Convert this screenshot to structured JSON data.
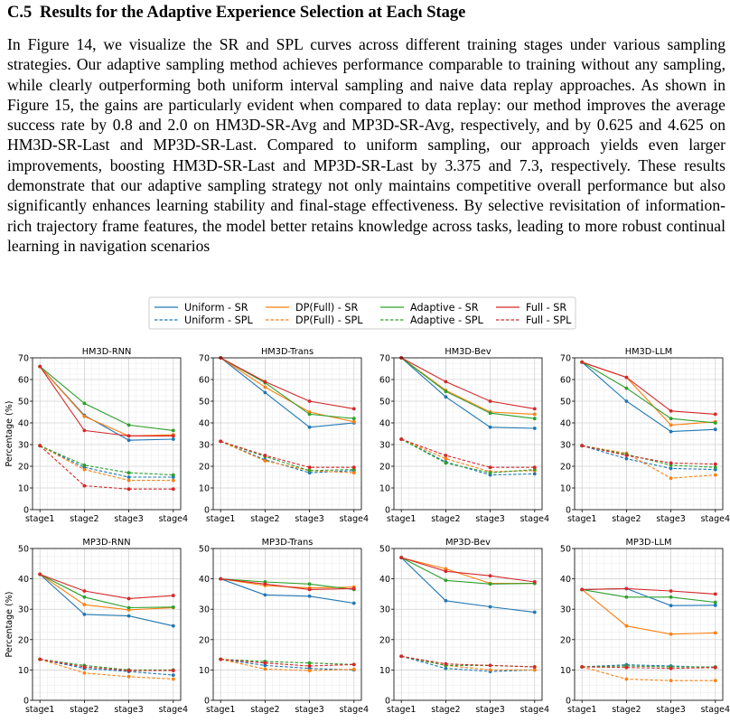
{
  "section": {
    "number": "C.5",
    "title": "Results for the Adaptive Experience Selection at Each Stage"
  },
  "paragraph": "In Figure 14, we visualize the SR and SPL curves across different training stages under various sampling strategies. Our adaptive sampling method achieves performance comparable to training without any sampling, while clearly outperforming both uniform interval sampling and naive data replay approaches. As shown in Figure 15, the gains are particularly evident when compared to data replay: our method improves the average success rate by 0.8 and 2.0 on HM3D-SR-Avg and MP3D-SR-Avg, respectively, and by 0.625 and 4.625 on HM3D-SR-Last and MP3D-SR-Last. Compared to uniform sampling, our approach yields even larger improvements, boosting HM3D-SR-Last and MP3D-SR-Last by 3.375 and 7.3, respectively. These results demonstrate that our adaptive sampling strategy not only maintains competitive overall performance but also significantly enhances learning stability and final-stage effectiveness. By selective revisitation of information-rich trajectory frame features, the model better retains knowledge across tasks, leading to more robust continual learning in navigation scenarios",
  "legend": [
    {
      "label": "Uniform - SR",
      "color": "#1f77b4",
      "dash": false
    },
    {
      "label": "DP(Full) - SR",
      "color": "#ff7f0e",
      "dash": false
    },
    {
      "label": "Adaptive - SR",
      "color": "#2ca02c",
      "dash": false
    },
    {
      "label": "Full - SR",
      "color": "#d62728",
      "dash": false
    },
    {
      "label": "Uniform - SPL",
      "color": "#1f77b4",
      "dash": true
    },
    {
      "label": "DP(Full) - SPL",
      "color": "#ff7f0e",
      "dash": true
    },
    {
      "label": "Adaptive - SPL",
      "color": "#2ca02c",
      "dash": true
    },
    {
      "label": "Full - SPL",
      "color": "#d62728",
      "dash": true
    }
  ],
  "chart_data": [
    {
      "type": "line",
      "title": "HM3D-RNN",
      "ylabel": "Percentage (%)",
      "categories": [
        "stage1",
        "stage2",
        "stage3",
        "stage4"
      ],
      "ylim": [
        0,
        70
      ],
      "yticks": [
        0,
        10,
        20,
        30,
        40,
        50,
        60,
        70
      ],
      "grid": true,
      "series": [
        {
          "name": "Uniform - SR",
          "color": "#1f77b4",
          "dash": false,
          "values": [
            66,
            43.5,
            32,
            32.5
          ]
        },
        {
          "name": "DP(Full) - SR",
          "color": "#ff7f0e",
          "dash": false,
          "values": [
            66,
            43,
            34,
            34.5
          ]
        },
        {
          "name": "Adaptive - SR",
          "color": "#2ca02c",
          "dash": false,
          "values": [
            66,
            49,
            39,
            36.5
          ]
        },
        {
          "name": "Full - SR",
          "color": "#d62728",
          "dash": false,
          "values": [
            66,
            36.5,
            34,
            34
          ]
        },
        {
          "name": "Uniform - SPL",
          "color": "#1f77b4",
          "dash": true,
          "values": [
            29.5,
            19.5,
            15,
            15
          ]
        },
        {
          "name": "DP(Full) - SPL",
          "color": "#ff7f0e",
          "dash": true,
          "values": [
            29.5,
            18.5,
            13.5,
            13.5
          ]
        },
        {
          "name": "Adaptive - SPL",
          "color": "#2ca02c",
          "dash": true,
          "values": [
            29.5,
            20.5,
            17,
            16
          ]
        },
        {
          "name": "Full - SPL",
          "color": "#d62728",
          "dash": true,
          "values": [
            29.5,
            11,
            9.5,
            9.5
          ]
        }
      ]
    },
    {
      "type": "line",
      "title": "HM3D-Trans",
      "ylabel": "",
      "categories": [
        "stage1",
        "stage2",
        "stage3",
        "stage4"
      ],
      "ylim": [
        0,
        70
      ],
      "yticks": [
        0,
        10,
        20,
        30,
        40,
        50,
        60,
        70
      ],
      "grid": true,
      "series": [
        {
          "name": "Uniform - SR",
          "color": "#1f77b4",
          "dash": false,
          "values": [
            70,
            54,
            38,
            40
          ]
        },
        {
          "name": "DP(Full) - SR",
          "color": "#ff7f0e",
          "dash": false,
          "values": [
            70,
            56.5,
            45,
            40.5
          ]
        },
        {
          "name": "Adaptive - SR",
          "color": "#2ca02c",
          "dash": false,
          "values": [
            70,
            58.5,
            44,
            42
          ]
        },
        {
          "name": "Full - SR",
          "color": "#d62728",
          "dash": false,
          "values": [
            70,
            59,
            50,
            46.5
          ]
        },
        {
          "name": "Uniform - SPL",
          "color": "#1f77b4",
          "dash": true,
          "values": [
            31.5,
            23,
            17,
            18
          ]
        },
        {
          "name": "DP(Full) - SPL",
          "color": "#ff7f0e",
          "dash": true,
          "values": [
            31.5,
            22.5,
            18,
            17
          ]
        },
        {
          "name": "Adaptive - SPL",
          "color": "#2ca02c",
          "dash": true,
          "values": [
            31.5,
            24.5,
            18,
            18.5
          ]
        },
        {
          "name": "Full - SPL",
          "color": "#d62728",
          "dash": true,
          "values": [
            31.5,
            25,
            19.5,
            19.5
          ]
        }
      ]
    },
    {
      "type": "line",
      "title": "HM3D-Bev",
      "ylabel": "",
      "categories": [
        "stage1",
        "stage2",
        "stage3",
        "stage4"
      ],
      "ylim": [
        0,
        70
      ],
      "yticks": [
        0,
        10,
        20,
        30,
        40,
        50,
        60,
        70
      ],
      "grid": true,
      "series": [
        {
          "name": "Uniform - SR",
          "color": "#1f77b4",
          "dash": false,
          "values": [
            70,
            52,
            38,
            37.5
          ]
        },
        {
          "name": "DP(Full) - SR",
          "color": "#ff7f0e",
          "dash": false,
          "values": [
            70,
            55,
            45,
            44
          ]
        },
        {
          "name": "Adaptive - SR",
          "color": "#2ca02c",
          "dash": false,
          "values": [
            70,
            54.5,
            44.5,
            42
          ]
        },
        {
          "name": "Full - SR",
          "color": "#d62728",
          "dash": false,
          "values": [
            70,
            59,
            50,
            46.5
          ]
        },
        {
          "name": "Uniform - SPL",
          "color": "#1f77b4",
          "dash": true,
          "values": [
            32.5,
            22,
            16,
            16.5
          ]
        },
        {
          "name": "DP(Full) - SPL",
          "color": "#ff7f0e",
          "dash": true,
          "values": [
            32.5,
            23.5,
            17.5,
            18
          ]
        },
        {
          "name": "Adaptive - SPL",
          "color": "#2ca02c",
          "dash": true,
          "values": [
            32.5,
            21.5,
            17,
            18.5
          ]
        },
        {
          "name": "Full - SPL",
          "color": "#d62728",
          "dash": true,
          "values": [
            32.5,
            25,
            19.5,
            19.5
          ]
        }
      ]
    },
    {
      "type": "line",
      "title": "HM3D-LLM",
      "ylabel": "",
      "categories": [
        "stage1",
        "stage2",
        "stage3",
        "stage4"
      ],
      "ylim": [
        0,
        70
      ],
      "yticks": [
        0,
        10,
        20,
        30,
        40,
        50,
        60,
        70
      ],
      "grid": true,
      "series": [
        {
          "name": "Uniform - SR",
          "color": "#1f77b4",
          "dash": false,
          "values": [
            68,
            50,
            36,
            37
          ]
        },
        {
          "name": "DP(Full) - SR",
          "color": "#ff7f0e",
          "dash": false,
          "values": [
            68,
            61,
            39,
            40.5
          ]
        },
        {
          "name": "Adaptive - SR",
          "color": "#2ca02c",
          "dash": false,
          "values": [
            68,
            56,
            42,
            40
          ]
        },
        {
          "name": "Full - SR",
          "color": "#d62728",
          "dash": false,
          "values": [
            68,
            61,
            45.5,
            44
          ]
        },
        {
          "name": "Uniform - SPL",
          "color": "#1f77b4",
          "dash": true,
          "values": [
            29.5,
            23.5,
            19,
            18.5
          ]
        },
        {
          "name": "DP(Full) - SPL",
          "color": "#ff7f0e",
          "dash": true,
          "values": [
            29.5,
            26,
            14.5,
            16
          ]
        },
        {
          "name": "Adaptive - SPL",
          "color": "#2ca02c",
          "dash": true,
          "values": [
            29.5,
            25.5,
            20.5,
            19.5
          ]
        },
        {
          "name": "Full - SPL",
          "color": "#d62728",
          "dash": true,
          "values": [
            29.5,
            25,
            21.5,
            21
          ]
        }
      ]
    },
    {
      "type": "line",
      "title": "MP3D-RNN",
      "ylabel": "Percentage (%)",
      "categories": [
        "stage1",
        "stage2",
        "stage3",
        "stage4"
      ],
      "ylim": [
        0,
        50
      ],
      "yticks": [
        0,
        10,
        20,
        30,
        40,
        50
      ],
      "grid": true,
      "series": [
        {
          "name": "Uniform - SR",
          "color": "#1f77b4",
          "dash": false,
          "values": [
            41.5,
            28.3,
            27.8,
            24.5
          ]
        },
        {
          "name": "DP(Full) - SR",
          "color": "#ff7f0e",
          "dash": false,
          "values": [
            41.5,
            31.5,
            29.8,
            30.5
          ]
        },
        {
          "name": "Adaptive - SR",
          "color": "#2ca02c",
          "dash": false,
          "values": [
            41.5,
            34,
            30.5,
            30.7
          ]
        },
        {
          "name": "Full - SR",
          "color": "#d62728",
          "dash": false,
          "values": [
            41.5,
            36,
            33.5,
            34.5
          ]
        },
        {
          "name": "Uniform - SPL",
          "color": "#1f77b4",
          "dash": true,
          "values": [
            13.5,
            10.5,
            9.5,
            8.3
          ]
        },
        {
          "name": "DP(Full) - SPL",
          "color": "#ff7f0e",
          "dash": true,
          "values": [
            13.5,
            9,
            7.8,
            7
          ]
        },
        {
          "name": "Adaptive - SPL",
          "color": "#2ca02c",
          "dash": true,
          "values": [
            13.5,
            11.5,
            10,
            10
          ]
        },
        {
          "name": "Full - SPL",
          "color": "#d62728",
          "dash": true,
          "values": [
            13.5,
            11,
            9.8,
            9.8
          ]
        }
      ]
    },
    {
      "type": "line",
      "title": "MP3D-Trans",
      "ylabel": "",
      "categories": [
        "stage1",
        "stage2",
        "stage3",
        "stage4"
      ],
      "ylim": [
        0,
        50
      ],
      "yticks": [
        0,
        10,
        20,
        30,
        40,
        50
      ],
      "grid": true,
      "series": [
        {
          "name": "Uniform - SR",
          "color": "#1f77b4",
          "dash": false,
          "values": [
            40,
            34.7,
            34.3,
            32
          ]
        },
        {
          "name": "DP(Full) - SR",
          "color": "#ff7f0e",
          "dash": false,
          "values": [
            40,
            37.8,
            37,
            37.3
          ]
        },
        {
          "name": "Adaptive - SR",
          "color": "#2ca02c",
          "dash": false,
          "values": [
            40,
            39,
            38.3,
            36.5
          ]
        },
        {
          "name": "Full - SR",
          "color": "#d62728",
          "dash": false,
          "values": [
            40,
            38.3,
            36.5,
            36.8
          ]
        },
        {
          "name": "Uniform - SPL",
          "color": "#1f77b4",
          "dash": true,
          "values": [
            13.5,
            11.5,
            10.5,
            10
          ]
        },
        {
          "name": "DP(Full) - SPL",
          "color": "#ff7f0e",
          "dash": true,
          "values": [
            13.5,
            10.3,
            9.8,
            10.2
          ]
        },
        {
          "name": "Adaptive - SPL",
          "color": "#2ca02c",
          "dash": true,
          "values": [
            13.5,
            12.8,
            12.3,
            11.8
          ]
        },
        {
          "name": "Full - SPL",
          "color": "#d62728",
          "dash": true,
          "values": [
            13.5,
            12.3,
            11.3,
            11.8
          ]
        }
      ]
    },
    {
      "type": "line",
      "title": "MP3D-Bev",
      "ylabel": "",
      "categories": [
        "stage1",
        "stage2",
        "stage3",
        "stage4"
      ],
      "ylim": [
        0,
        50
      ],
      "yticks": [
        0,
        10,
        20,
        30,
        40,
        50
      ],
      "grid": true,
      "series": [
        {
          "name": "Uniform - SR",
          "color": "#1f77b4",
          "dash": false,
          "values": [
            47,
            32.8,
            30.8,
            29
          ]
        },
        {
          "name": "DP(Full) - SR",
          "color": "#ff7f0e",
          "dash": false,
          "values": [
            47,
            43.3,
            38.5,
            38.5
          ]
        },
        {
          "name": "Adaptive - SR",
          "color": "#2ca02c",
          "dash": false,
          "values": [
            47,
            39.5,
            38.3,
            38.5
          ]
        },
        {
          "name": "Full - SR",
          "color": "#d62728",
          "dash": false,
          "values": [
            47,
            42.5,
            41,
            39
          ]
        },
        {
          "name": "Uniform - SPL",
          "color": "#1f77b4",
          "dash": true,
          "values": [
            14.5,
            10.5,
            9.5,
            10
          ]
        },
        {
          "name": "DP(Full) - SPL",
          "color": "#ff7f0e",
          "dash": true,
          "values": [
            14.5,
            11.5,
            10,
            10
          ]
        },
        {
          "name": "Adaptive - SPL",
          "color": "#2ca02c",
          "dash": true,
          "values": [
            14.5,
            11.5,
            11.5,
            11
          ]
        },
        {
          "name": "Full - SPL",
          "color": "#d62728",
          "dash": true,
          "values": [
            14.5,
            12,
            11.5,
            11
          ]
        }
      ]
    },
    {
      "type": "line",
      "title": "MP3D-LLM",
      "ylabel": "",
      "categories": [
        "stage1",
        "stage2",
        "stage3",
        "stage4"
      ],
      "ylim": [
        0,
        50
      ],
      "yticks": [
        0,
        10,
        20,
        30,
        40,
        50
      ],
      "grid": true,
      "series": [
        {
          "name": "Uniform - SR",
          "color": "#1f77b4",
          "dash": false,
          "values": [
            36.5,
            36.8,
            31.2,
            31.3
          ]
        },
        {
          "name": "DP(Full) - SR",
          "color": "#ff7f0e",
          "dash": false,
          "values": [
            36.5,
            24.5,
            21.8,
            22.2
          ]
        },
        {
          "name": "Adaptive - SR",
          "color": "#2ca02c",
          "dash": false,
          "values": [
            36.5,
            34,
            34,
            32.3
          ]
        },
        {
          "name": "Full - SR",
          "color": "#d62728",
          "dash": false,
          "values": [
            36.5,
            36.8,
            36,
            35
          ]
        },
        {
          "name": "Uniform - SPL",
          "color": "#1f77b4",
          "dash": true,
          "values": [
            11,
            11.7,
            11.3,
            10.8
          ]
        },
        {
          "name": "DP(Full) - SPL",
          "color": "#ff7f0e",
          "dash": true,
          "values": [
            11,
            7,
            6.5,
            6.5
          ]
        },
        {
          "name": "Adaptive - SPL",
          "color": "#2ca02c",
          "dash": true,
          "values": [
            11,
            11.3,
            11,
            11
          ]
        },
        {
          "name": "Full - SPL",
          "color": "#d62728",
          "dash": true,
          "values": [
            11,
            10.8,
            10.5,
            10.8
          ]
        }
      ]
    }
  ]
}
